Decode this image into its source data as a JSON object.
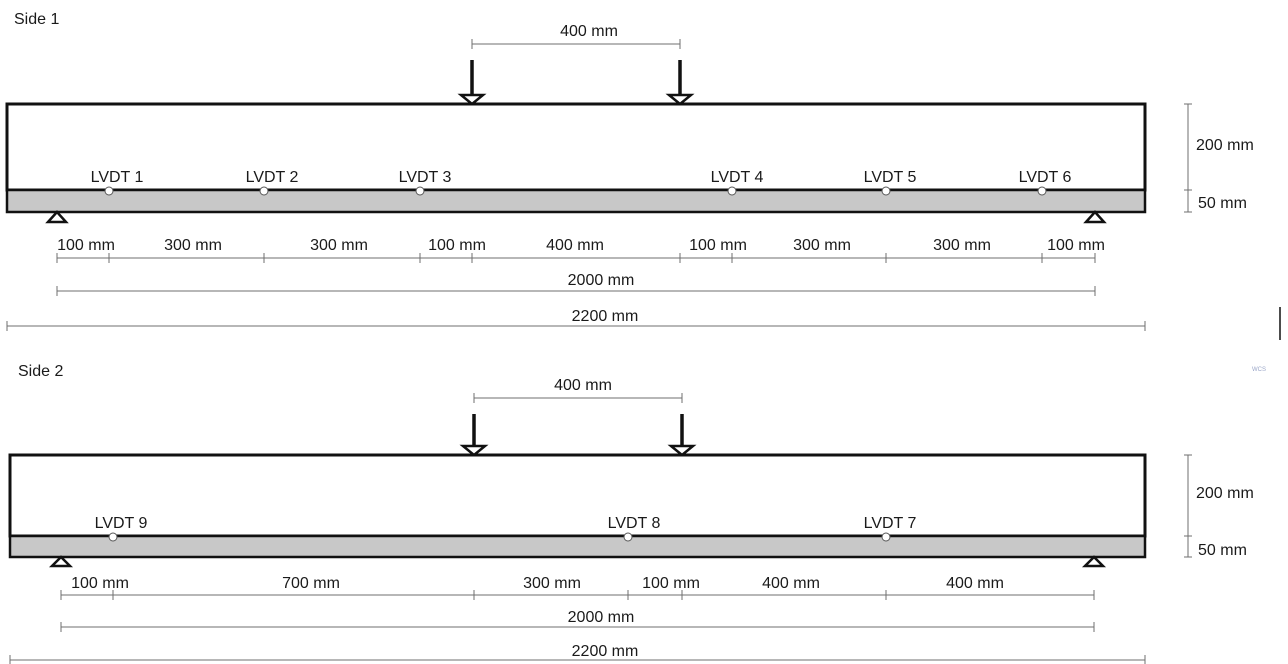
{
  "side1": {
    "title": "Side 1",
    "load_spacing": "400 mm",
    "lvdts": [
      "LVDT 1",
      "LVDT 2",
      "LVDT 3",
      "LVDT 4",
      "LVDT 5",
      "LVDT 6"
    ],
    "segments": [
      "100 mm",
      "300 mm",
      "300 mm",
      "100 mm",
      "400 mm",
      "100 mm",
      "300 mm",
      "300 mm",
      "100 mm"
    ],
    "span": "2000 mm",
    "total": "2200 mm",
    "height_upper": "200 mm",
    "height_lower": "50 mm"
  },
  "side2": {
    "title": "Side 2",
    "load_spacing": "400 mm",
    "lvdts": [
      "LVDT 9",
      "LVDT 8",
      "LVDT 7"
    ],
    "segments": [
      "100 mm",
      "700 mm",
      "300 mm",
      "100 mm",
      "400 mm",
      "400 mm"
    ],
    "span": "2000 mm",
    "total": "2200 mm",
    "height_upper": "200 mm",
    "height_lower": "50 mm"
  },
  "watermark": "WCS"
}
